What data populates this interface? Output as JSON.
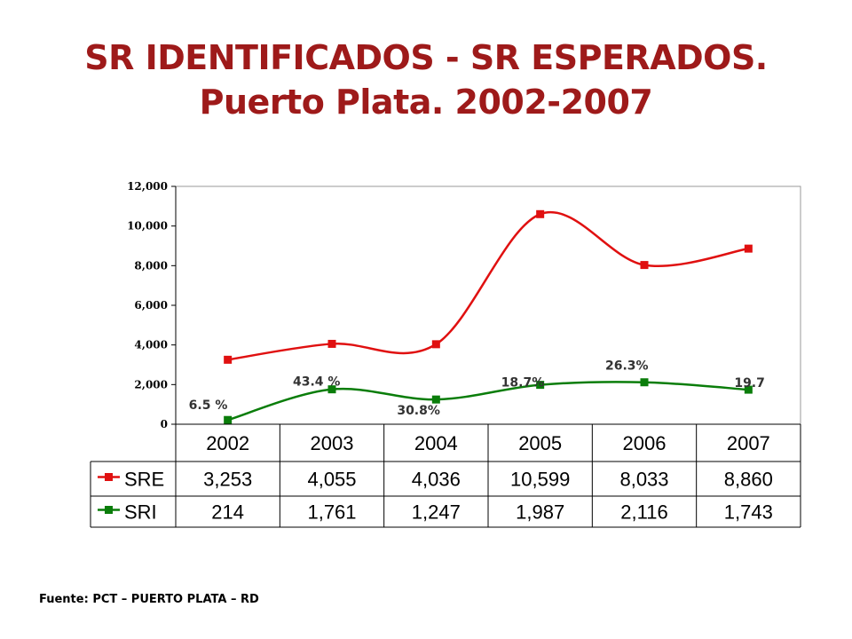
{
  "title": {
    "line1": "SR IDENTIFICADOS - SR ESPERADOS.",
    "line2": "Puerto Plata. 2002-2007"
  },
  "source": "Fuente: PCT – PUERTO PLATA – RD",
  "colors": {
    "title": "#9e1a1a",
    "SRE": "#e01010",
    "SRI": "#0a7d0a"
  },
  "chart_data": {
    "type": "line",
    "categories": [
      "2002",
      "2003",
      "2004",
      "2005",
      "2006",
      "2007"
    ],
    "series": [
      {
        "name": "SRE",
        "marker": "square",
        "values": [
          3253,
          4055,
          4036,
          10599,
          8033,
          8860
        ],
        "labels": [
          "3,253",
          "4,055",
          "4,036",
          "10,599",
          "8,033",
          "8,860"
        ]
      },
      {
        "name": "SRI",
        "marker": "square",
        "values": [
          214,
          1761,
          1247,
          1987,
          2116,
          1743
        ],
        "labels": [
          "214",
          "1,761",
          "1,247",
          "1,987",
          "2,116",
          "1,743"
        ]
      }
    ],
    "annotations": [
      "6.5 %",
      "43.4 %",
      "30.8%",
      "18.7%",
      "26.3%",
      "19.7"
    ],
    "yticks": [
      0,
      2000,
      4000,
      6000,
      8000,
      10000,
      12000
    ],
    "ytick_labels": [
      "0",
      "2,000",
      "4,000",
      "6,000",
      "8,000",
      "10,000",
      "12,000"
    ],
    "ylim": [
      0,
      12000
    ],
    "smooth": true,
    "grid": false,
    "data_table": true
  }
}
